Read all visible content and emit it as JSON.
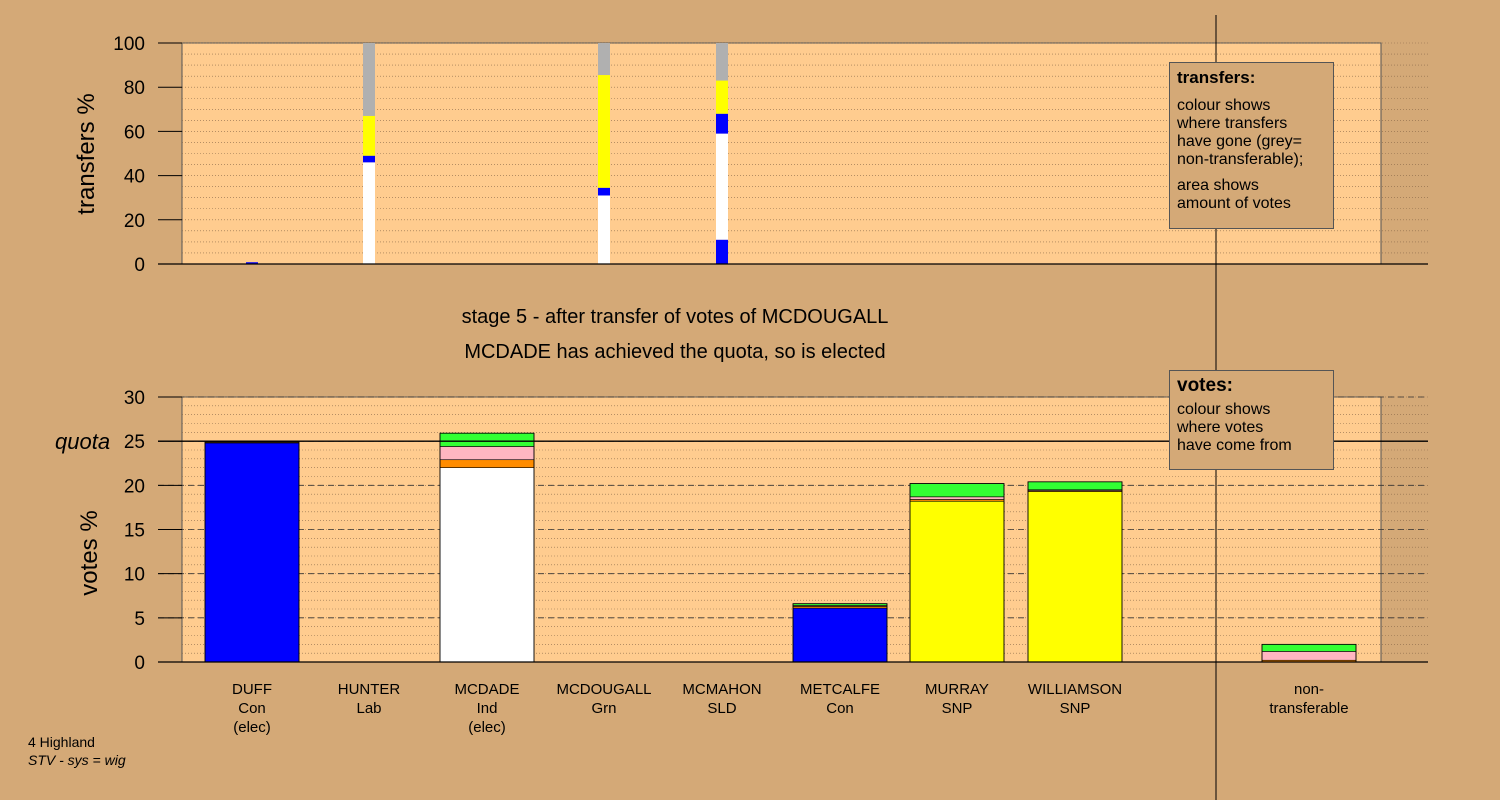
{
  "chart_data": [
    {
      "type": "bar",
      "name": "transfers",
      "ylabel": "transfers %",
      "ylim": [
        0,
        100
      ],
      "yticks": [
        0,
        20,
        40,
        60,
        80,
        100
      ],
      "bars": [
        {
          "index": 0,
          "segments": [
            {
              "color": "#0000ff",
              "value": 0.8
            }
          ]
        },
        {
          "index": 1,
          "segments": [
            {
              "color": "#ffffff",
              "value": 46
            },
            {
              "color": "#0000ff",
              "value": 3
            },
            {
              "color": "#ffff00",
              "value": 18
            },
            {
              "color": "#b0b0b0",
              "value": 33
            }
          ]
        },
        {
          "index": 3,
          "segments": [
            {
              "color": "#ffffff",
              "value": 31
            },
            {
              "color": "#0000ff",
              "value": 3.5
            },
            {
              "color": "#ffff00",
              "value": 51
            },
            {
              "color": "#b0b0b0",
              "value": 14.5
            }
          ]
        },
        {
          "index": 4,
          "segments": [
            {
              "color": "#0000ff",
              "value": 11
            },
            {
              "color": "#ffffff",
              "value": 48
            },
            {
              "color": "#0000ff",
              "value": 9
            },
            {
              "color": "#ffff00",
              "value": 15
            },
            {
              "color": "#b0b0b0",
              "value": 17
            }
          ]
        }
      ]
    },
    {
      "type": "bar",
      "name": "votes",
      "ylabel": "votes %",
      "ylim": [
        0,
        30
      ],
      "yticks": [
        0,
        5,
        10,
        15,
        20,
        25,
        30
      ],
      "quota": 25,
      "quota_label": "quota",
      "bars": [
        {
          "index": 0,
          "segments": [
            {
              "color": "#0000ff",
              "value": 24.8
            },
            {
              "color": "#ff8c00",
              "value": 0.1
            }
          ]
        },
        {
          "index": 1,
          "segments": []
        },
        {
          "index": 2,
          "segments": [
            {
              "color": "#ffffff",
              "value": 22
            },
            {
              "color": "#ff8c00",
              "value": 0.9
            },
            {
              "color": "#ffb6c1",
              "value": 1.5
            },
            {
              "color": "#33ff33",
              "value": 1.5
            }
          ]
        },
        {
          "index": 3,
          "segments": []
        },
        {
          "index": 4,
          "segments": []
        },
        {
          "index": 5,
          "segments": [
            {
              "color": "#0000ff",
              "value": 6.1
            },
            {
              "color": "#ff8c00",
              "value": 0.2
            },
            {
              "color": "#ffb6c1",
              "value": 0.1
            },
            {
              "color": "#33ff33",
              "value": 0.2
            }
          ]
        },
        {
          "index": 6,
          "segments": [
            {
              "color": "#ffff00",
              "value": 18.2
            },
            {
              "color": "#ff8c00",
              "value": 0.2
            },
            {
              "color": "#ffb6c1",
              "value": 0.3
            },
            {
              "color": "#33ff33",
              "value": 1.5
            }
          ]
        },
        {
          "index": 7,
          "segments": [
            {
              "color": "#ffff00",
              "value": 19.3
            },
            {
              "color": "#ff8c00",
              "value": 0.1
            },
            {
              "color": "#ffb6c1",
              "value": 0.1
            },
            {
              "color": "#33ff33",
              "value": 0.9
            }
          ]
        },
        {
          "index": 8,
          "segments": [
            {
              "color": "#ff8c00",
              "value": 0.2
            },
            {
              "color": "#ffb6c1",
              "value": 1.0
            },
            {
              "color": "#33ff33",
              "value": 0.8
            }
          ]
        }
      ]
    }
  ],
  "candidates": [
    {
      "name": "DUFF",
      "party": "Con",
      "status": "(elec)"
    },
    {
      "name": "HUNTER",
      "party": "Lab",
      "status": ""
    },
    {
      "name": "MCDADE",
      "party": "Ind",
      "status": "(elec)"
    },
    {
      "name": "MCDOUGALL",
      "party": "Grn",
      "status": ""
    },
    {
      "name": "MCMAHON",
      "party": "SLD",
      "status": ""
    },
    {
      "name": "METCALFE",
      "party": "Con",
      "status": ""
    },
    {
      "name": "MURRAY",
      "party": "SNP",
      "status": ""
    },
    {
      "name": "WILLIAMSON",
      "party": "SNP",
      "status": ""
    },
    {
      "name": "non-",
      "party": "transferable",
      "status": ""
    }
  ],
  "stage": {
    "line1": "stage 5 - after transfer of votes of MCDOUGALL",
    "line2": "MCDADE has achieved the quota, so is elected"
  },
  "legend_transfers": {
    "title": "transfers:",
    "lines": [
      "colour shows",
      "where transfers",
      "have gone (grey=",
      "non-transferable);"
    ],
    "lines2": [
      "area shows",
      "amount of votes"
    ]
  },
  "legend_votes": {
    "title": "votes:",
    "lines": [
      "colour shows",
      "where votes",
      "have come from"
    ]
  },
  "footer": {
    "region": "4 Highland",
    "system": "STV - sys = wig"
  }
}
